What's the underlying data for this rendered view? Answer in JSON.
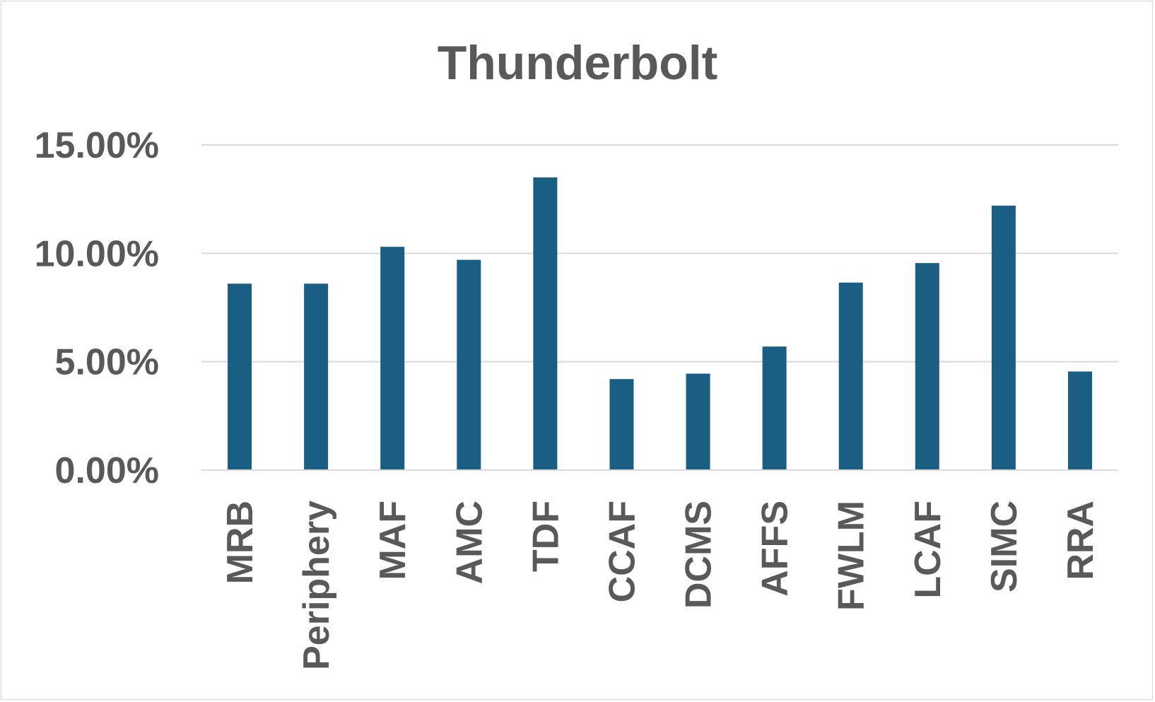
{
  "chart_data": {
    "type": "bar",
    "title": "Thunderbolt",
    "xlabel": "",
    "ylabel": "",
    "categories": [
      "MRB",
      "Periphery",
      "MAF",
      "AMC",
      "TDF",
      "CCAF",
      "DCMS",
      "AFFS",
      "FWLM",
      "LCAF",
      "SIMC",
      "RRA"
    ],
    "values": [
      8.6,
      8.6,
      10.3,
      9.7,
      13.5,
      4.2,
      4.45,
      5.7,
      8.65,
      9.55,
      12.2,
      4.55
    ],
    "y_ticks": [
      "0.00%",
      "5.00%",
      "10.00%",
      "15.00%"
    ],
    "y_tick_values": [
      0,
      5,
      10,
      15
    ],
    "ylim": [
      0,
      15
    ],
    "y_format": "percent",
    "grid": true,
    "legend": "none",
    "bar_color": "#1a5f83"
  }
}
